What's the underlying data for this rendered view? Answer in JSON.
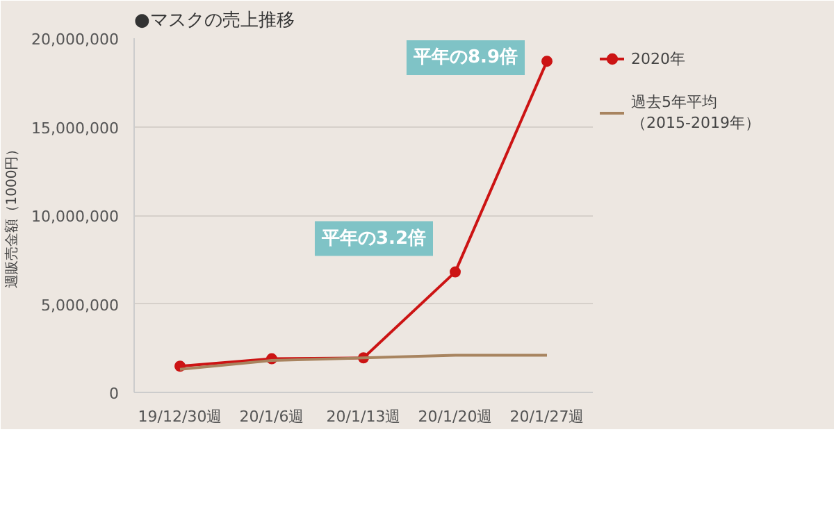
{
  "chart_data": {
    "type": "line",
    "title": "●マスクの売上推移",
    "ylabel": "週販売金額（1000円）",
    "categories": [
      "19/12/30週",
      "20/1/6週",
      "20/1/13週",
      "20/1/20週",
      "20/1/27週"
    ],
    "series": [
      {
        "name": "2020年",
        "color": "#cc1414",
        "values": [
          1480000,
          1900000,
          1950000,
          6800000,
          18700000
        ],
        "marker": "circle"
      },
      {
        "name": "過去5年平均（2015-2019年）",
        "color": "#a8845f",
        "values": [
          1300000,
          1800000,
          1950000,
          2100000,
          2100000
        ],
        "marker": "none"
      }
    ],
    "ylim": [
      0,
      20000000
    ],
    "yticks": [
      {
        "value": 0,
        "label": "0"
      },
      {
        "value": 5000000,
        "label": "5,000,000"
      },
      {
        "value": 10000000,
        "label": "10,000,000"
      },
      {
        "value": 15000000,
        "label": "15,000,000"
      },
      {
        "value": 20000000,
        "label": "20,000,000"
      }
    ],
    "grid": "y",
    "legend": "right",
    "annotations": [
      {
        "text": "平年の3.2倍",
        "x": "20/1/20週",
        "y": 6800000
      },
      {
        "text": "平年の8.9倍",
        "x": "20/1/27週",
        "y": 18700000
      }
    ]
  }
}
